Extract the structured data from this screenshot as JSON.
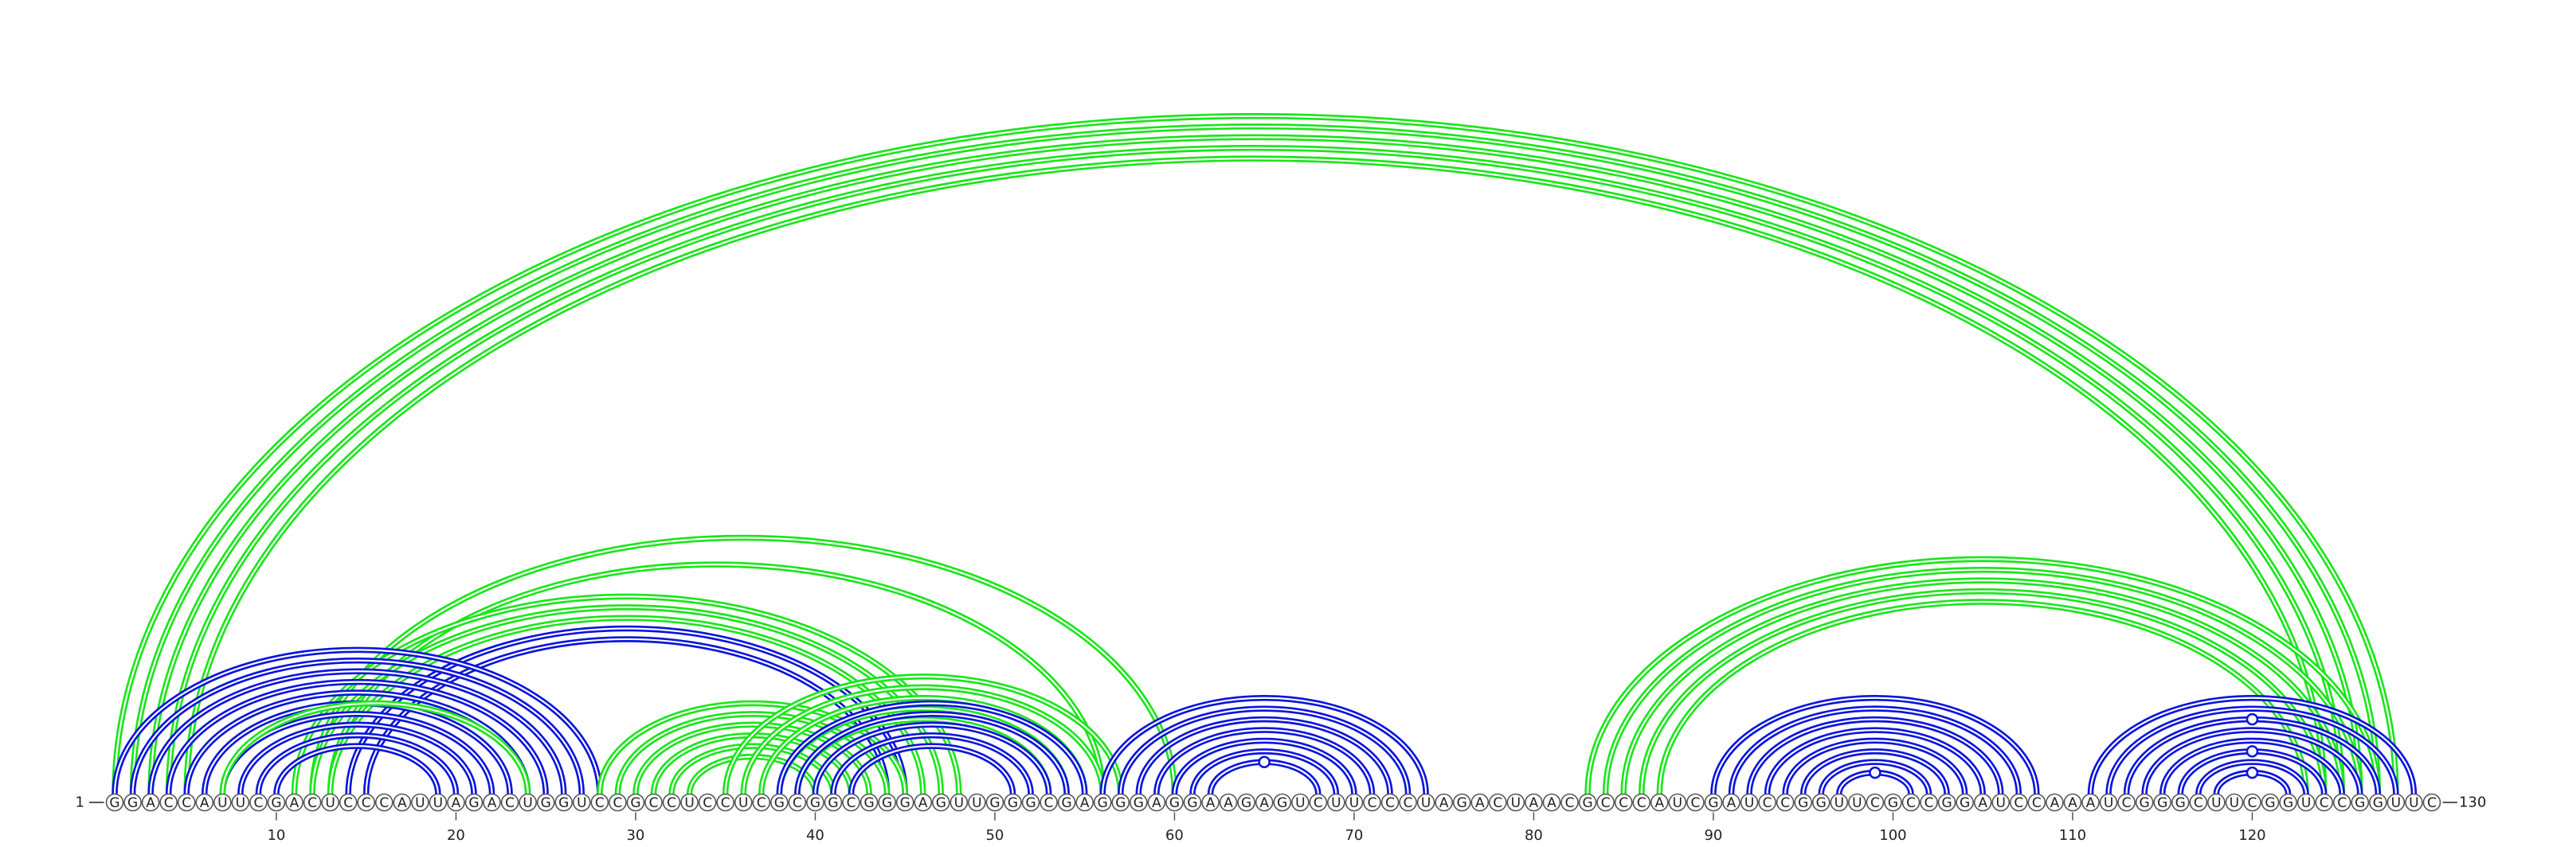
{
  "sequence": "GGACCAUUCGACUCCCAUUAGACUGGUCCGCCUCCUCGCGGCGGGAGUUGGGCGAGGGAGGAAGAGUCUUCCCUAGACUAACGCCCAUCGAUCCGGUUCGCCGGAUCCAAAUCGGGCUUCGGUCCGGUUC",
  "start_label": "1",
  "end_label": "130",
  "tick_labels": [
    "10",
    "20",
    "30",
    "40",
    "50",
    "60",
    "70",
    "80",
    "90",
    "100",
    "110",
    "120"
  ],
  "colors": {
    "blue": "#0a14dc",
    "green": "#19e619"
  },
  "arc_groups": [
    {
      "color": "green",
      "double": true,
      "pairs": [
        [
          1,
          128
        ],
        [
          2,
          127
        ],
        [
          3,
          126
        ],
        [
          4,
          125
        ],
        [
          5,
          124
        ]
      ]
    },
    {
      "color": "green",
      "double": true,
      "pairs": [
        [
          12,
          60
        ],
        [
          13,
          56
        ]
      ]
    },
    {
      "color": "green",
      "double": true,
      "pairs": [
        [
          11,
          48
        ],
        [
          12,
          47
        ],
        [
          13,
          46
        ]
      ]
    },
    {
      "color": "blue",
      "double": true,
      "pairs": [
        [
          14,
          45
        ],
        [
          15,
          44
        ]
      ]
    },
    {
      "color": "blue",
      "double": true,
      "pairs": [
        [
          1,
          28
        ],
        [
          2,
          27
        ],
        [
          3,
          26
        ],
        [
          4,
          25
        ],
        [
          5,
          24
        ],
        [
          6,
          23
        ],
        [
          7,
          22
        ],
        [
          8,
          21
        ],
        [
          9,
          20
        ],
        [
          10,
          19
        ]
      ]
    },
    {
      "color": "green",
      "double": true,
      "pairs": [
        [
          7,
          24
        ]
      ]
    },
    {
      "color": "green",
      "double": true,
      "pairs": [
        [
          28,
          45
        ],
        [
          29,
          44
        ],
        [
          30,
          43
        ],
        [
          31,
          42
        ],
        [
          32,
          41
        ],
        [
          33,
          40
        ]
      ]
    },
    {
      "color": "green",
      "double": true,
      "pairs": [
        [
          35,
          57
        ],
        [
          36,
          56
        ],
        [
          37,
          55
        ],
        [
          38,
          54
        ],
        [
          39,
          53
        ]
      ]
    },
    {
      "color": "blue",
      "double": true,
      "pairs": [
        [
          38,
          55
        ],
        [
          39,
          54
        ],
        [
          40,
          53
        ],
        [
          41,
          52
        ],
        [
          42,
          51
        ]
      ]
    },
    {
      "color": "blue",
      "double": true,
      "pairs": [
        [
          56,
          74
        ],
        [
          57,
          73
        ],
        [
          58,
          72
        ],
        [
          59,
          71
        ],
        [
          60,
          70
        ],
        [
          61,
          69
        ],
        [
          62,
          68
        ]
      ]
    },
    {
      "color": "green",
      "double": true,
      "pairs": [
        [
          83,
          127
        ],
        [
          84,
          126
        ],
        [
          85,
          125
        ],
        [
          86,
          124
        ],
        [
          87,
          123
        ]
      ]
    },
    {
      "color": "blue",
      "double": true,
      "pairs": [
        [
          90,
          108
        ],
        [
          91,
          107
        ],
        [
          92,
          106
        ],
        [
          93,
          105
        ],
        [
          94,
          104
        ],
        [
          95,
          103
        ],
        [
          96,
          102
        ],
        [
          97,
          101
        ]
      ]
    },
    {
      "color": "blue",
      "double": true,
      "pairs": [
        [
          111,
          129
        ],
        [
          112,
          128
        ],
        [
          113,
          127
        ],
        [
          114,
          126
        ],
        [
          115,
          125
        ],
        [
          116,
          124
        ],
        [
          117,
          123
        ],
        [
          118,
          122
        ]
      ]
    }
  ],
  "pair_markers": [
    {
      "color": "blue",
      "pair": [
        62,
        68
      ]
    },
    {
      "color": "blue",
      "pair": [
        97,
        101
      ]
    },
    {
      "color": "blue",
      "pair": [
        113,
        127
      ]
    },
    {
      "color": "blue",
      "pair": [
        116,
        124
      ]
    },
    {
      "color": "blue",
      "pair": [
        118,
        122
      ]
    }
  ]
}
